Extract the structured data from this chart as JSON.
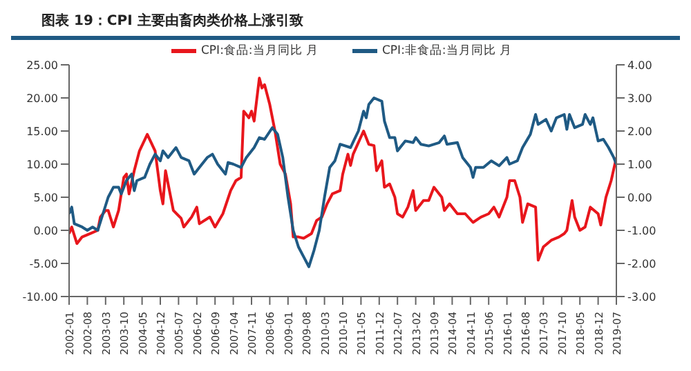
{
  "chart_data": {
    "type": "line",
    "title": "图表 19：CPI 主要由畜肉类价格上涨引致",
    "legend": "top",
    "marker": "none",
    "line_style": "solid",
    "grid": false,
    "xlim": [
      "2002-01",
      "2019-07"
    ],
    "xticks": [
      "2002-01",
      "2002-08",
      "2003-03",
      "2003-10",
      "2004-05",
      "2004-12",
      "2005-07",
      "2006-02",
      "2006-09",
      "2007-04",
      "2007-11",
      "2008-06",
      "2009-01",
      "2009-08",
      "2010-03",
      "2010-10",
      "2011-05",
      "2011-12",
      "2012-07",
      "2013-02",
      "2013-09",
      "2014-04",
      "2014-11",
      "2015-06",
      "2016-01",
      "2016-08",
      "2017-03",
      "2017-10",
      "2018-05",
      "2018-12",
      "2019-07"
    ],
    "ylim": [
      -10,
      25
    ],
    "yticks": [
      {
        "value": -10,
        "label": "-10.00"
      },
      {
        "value": -5,
        "label": "-5.00"
      },
      {
        "value": 0,
        "label": "0.00"
      },
      {
        "value": 5,
        "label": "5.00"
      },
      {
        "value": 10,
        "label": "10.00"
      },
      {
        "value": 15,
        "label": "15.00"
      },
      {
        "value": 20,
        "label": "20.00"
      },
      {
        "value": 25,
        "label": "25.00"
      }
    ],
    "y2lim": [
      -3,
      4
    ],
    "y2ticks": [
      {
        "value": -3,
        "label": "-3.00"
      },
      {
        "value": -2,
        "label": "-2.00"
      },
      {
        "value": -1,
        "label": "-1.00"
      },
      {
        "value": 0,
        "label": "0.00"
      },
      {
        "value": 1,
        "label": "1.00"
      },
      {
        "value": 2,
        "label": "2.00"
      },
      {
        "value": 3,
        "label": "3.00"
      },
      {
        "value": 4,
        "label": "4.00"
      }
    ],
    "series": [
      {
        "name": "CPI:食品:当月同比 月",
        "color": "#e8161c",
        "x": [
          "2002-01",
          "2002-02",
          "2002-04",
          "2002-06",
          "2002-09",
          "2002-12",
          "2003-01",
          "2003-03",
          "2003-04",
          "2003-06",
          "2003-08",
          "2003-10",
          "2003-11",
          "2003-12",
          "2004-02",
          "2004-04",
          "2004-07",
          "2004-10",
          "2004-12",
          "2005-01",
          "2005-02",
          "2005-04",
          "2005-05",
          "2005-08",
          "2005-09",
          "2005-12",
          "2006-02",
          "2006-03",
          "2006-07",
          "2006-09",
          "2006-12",
          "2007-03",
          "2007-05",
          "2007-07",
          "2007-08",
          "2007-10",
          "2007-11",
          "2007-12",
          "2008-02",
          "2008-03",
          "2008-04",
          "2008-06",
          "2008-08",
          "2008-10",
          "2008-12",
          "2009-02",
          "2009-03",
          "2009-05",
          "2009-07",
          "2009-10",
          "2009-12",
          "2010-02",
          "2010-04",
          "2010-06",
          "2010-09",
          "2010-10",
          "2010-12",
          "2011-01",
          "2011-02",
          "2011-06",
          "2011-08",
          "2011-10",
          "2011-11",
          "2012-01",
          "2012-02",
          "2012-04",
          "2012-06",
          "2012-07",
          "2012-09",
          "2012-11",
          "2013-01",
          "2013-02",
          "2013-05",
          "2013-07",
          "2013-09",
          "2013-12",
          "2014-01",
          "2014-03",
          "2014-06",
          "2014-09",
          "2014-12",
          "2015-03",
          "2015-06",
          "2015-08",
          "2015-10",
          "2016-01",
          "2016-02",
          "2016-04",
          "2016-06",
          "2016-07",
          "2016-09",
          "2016-12",
          "2017-01",
          "2017-03",
          "2017-06",
          "2017-09",
          "2017-11",
          "2017-12",
          "2018-02",
          "2018-03",
          "2018-05",
          "2018-07",
          "2018-09",
          "2018-12",
          "2019-01",
          "2019-03",
          "2019-05",
          "2019-07"
        ],
        "values": [
          -0.5,
          0.5,
          -2,
          -1,
          -0.5,
          0,
          2,
          3,
          3,
          0.5,
          3,
          8,
          8.5,
          5.5,
          9,
          12,
          14.5,
          12,
          6,
          4,
          9,
          5,
          3,
          1.8,
          0.5,
          2,
          3.5,
          1,
          2,
          0.5,
          2.5,
          6,
          7.5,
          8,
          18,
          17,
          18,
          16.5,
          23,
          21.5,
          22,
          19,
          15,
          10,
          8.5,
          4,
          -1,
          -1,
          -1.2,
          -0.5,
          1.5,
          2,
          4,
          5.5,
          6,
          8.5,
          11.5,
          9.8,
          11.5,
          15,
          13,
          12.8,
          9,
          10.5,
          6.5,
          7,
          5,
          2.5,
          2,
          3.5,
          6,
          3,
          4.5,
          4.5,
          6.5,
          5,
          3,
          4,
          2.5,
          2.5,
          1.2,
          2,
          2.5,
          3.5,
          2,
          5,
          7.5,
          7.5,
          5,
          1.2,
          4,
          3.5,
          -4.5,
          -2.5,
          -1.5,
          -1,
          -0.5,
          0,
          4.5,
          2,
          0,
          0.5,
          3.5,
          2.5,
          0.8,
          5,
          7.5,
          11
        ]
      },
      {
        "name": "CPI:非食品:当月同比 月",
        "color": "#1f5a84",
        "axis": "y2",
        "x": [
          "2002-01",
          "2002-02",
          "2002-03",
          "2002-06",
          "2002-08",
          "2002-10",
          "2002-12",
          "2003-02",
          "2003-04",
          "2003-06",
          "2003-08",
          "2003-09",
          "2003-11",
          "2004-01",
          "2004-02",
          "2004-03",
          "2004-06",
          "2004-08",
          "2004-10",
          "2004-12",
          "2005-01",
          "2005-03",
          "2005-06",
          "2005-08",
          "2005-11",
          "2006-01",
          "2006-03",
          "2006-06",
          "2006-08",
          "2006-10",
          "2007-01",
          "2007-02",
          "2007-04",
          "2007-07",
          "2007-09",
          "2007-12",
          "2008-02",
          "2008-04",
          "2008-07",
          "2008-09",
          "2008-11",
          "2009-01",
          "2009-03",
          "2009-05",
          "2009-07",
          "2009-09",
          "2009-11",
          "2010-01",
          "2010-03",
          "2010-05",
          "2010-07",
          "2010-09",
          "2011-01",
          "2011-04",
          "2011-06",
          "2011-07",
          "2011-08",
          "2011-10",
          "2012-01",
          "2012-02",
          "2012-04",
          "2012-06",
          "2012-07",
          "2012-10",
          "2013-01",
          "2013-02",
          "2013-04",
          "2013-07",
          "2013-11",
          "2014-01",
          "2014-02",
          "2014-06",
          "2014-08",
          "2014-11",
          "2014-12",
          "2015-01",
          "2015-04",
          "2015-07",
          "2015-10",
          "2016-01",
          "2016-02",
          "2016-05",
          "2016-07",
          "2016-10",
          "2016-12",
          "2017-01",
          "2017-04",
          "2017-06",
          "2017-08",
          "2017-11",
          "2017-12",
          "2018-01",
          "2018-03",
          "2018-06",
          "2018-07",
          "2018-09",
          "2018-10",
          "2018-12",
          "2019-02",
          "2019-04",
          "2019-06",
          "2019-07"
        ],
        "values": [
          -0.5,
          -0.3,
          -0.8,
          -0.9,
          -1,
          -0.9,
          -1,
          -0.5,
          0,
          0.3,
          0.3,
          0.1,
          0.5,
          0.7,
          0.2,
          0.5,
          0.6,
          1,
          1.3,
          1.1,
          1.4,
          1.2,
          1.5,
          1.2,
          1.1,
          0.7,
          0.9,
          1.2,
          1.3,
          1,
          0.7,
          1.05,
          1,
          0.9,
          1.2,
          1.5,
          1.8,
          1.75,
          2.1,
          1.9,
          1.2,
          0,
          -1,
          -1.5,
          -1.8,
          -2.1,
          -1.6,
          -1,
          0,
          0.9,
          1.1,
          1.6,
          1.5,
          2,
          2.6,
          2.4,
          2.8,
          3,
          2.9,
          2.3,
          1.8,
          1.8,
          1.4,
          1.7,
          1.65,
          1.8,
          1.6,
          1.55,
          1.65,
          1.85,
          1.6,
          1.65,
          1.2,
          0.9,
          0.6,
          0.9,
          0.9,
          1.1,
          0.95,
          1.2,
          1,
          1.1,
          1.5,
          1.9,
          2.5,
          2.2,
          2.35,
          2,
          2.4,
          2.5,
          2.05,
          2.5,
          2.1,
          2.2,
          2.5,
          2.2,
          2.4,
          1.7,
          1.75,
          1.5,
          1.2,
          1
        ]
      }
    ]
  }
}
